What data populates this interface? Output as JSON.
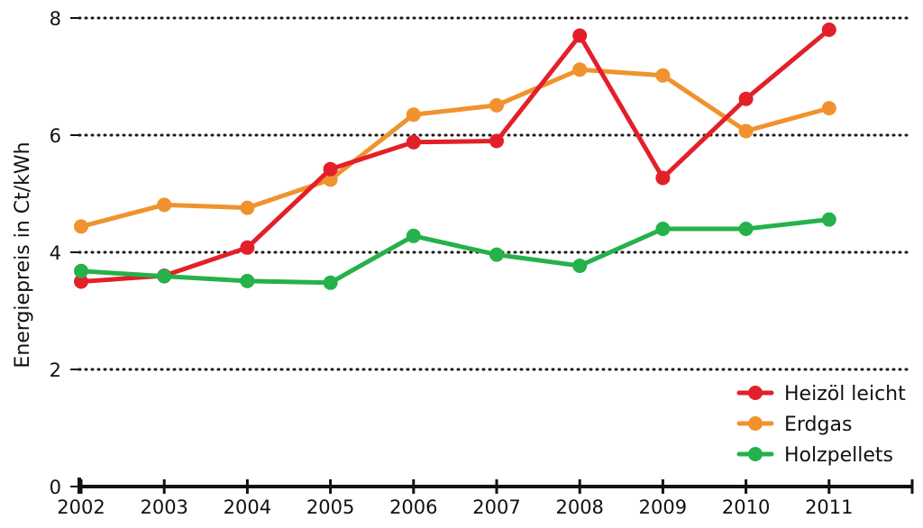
{
  "chart_data": {
    "type": "line",
    "title": "",
    "xlabel": "",
    "ylabel": "Energiepreis in Ct/kWh",
    "x": [
      "2002",
      "2003",
      "2004",
      "2005",
      "2006",
      "2007",
      "2008",
      "2009",
      "2010",
      "2011"
    ],
    "ylim": [
      0,
      8
    ],
    "yticks": [
      "0",
      "2",
      "4",
      "6",
      "8"
    ],
    "grid": "horizontal-dotted",
    "legend": "bottom-right",
    "series": [
      {
        "name": "Heizöl leicht",
        "color": "#e2202a",
        "values": [
          3.5,
          3.6,
          4.08,
          5.42,
          5.88,
          5.9,
          7.7,
          5.27,
          6.62,
          7.8
        ]
      },
      {
        "name": "Erdgas",
        "color": "#f0922d",
        "values": [
          4.44,
          4.81,
          4.76,
          5.24,
          6.35,
          6.51,
          7.12,
          7.02,
          6.07,
          6.46
        ]
      },
      {
        "name": "Holzpellets",
        "color": "#25b14b",
        "values": [
          3.68,
          3.59,
          3.51,
          3.48,
          4.28,
          3.96,
          3.77,
          4.4,
          4.4,
          4.56
        ]
      }
    ]
  }
}
